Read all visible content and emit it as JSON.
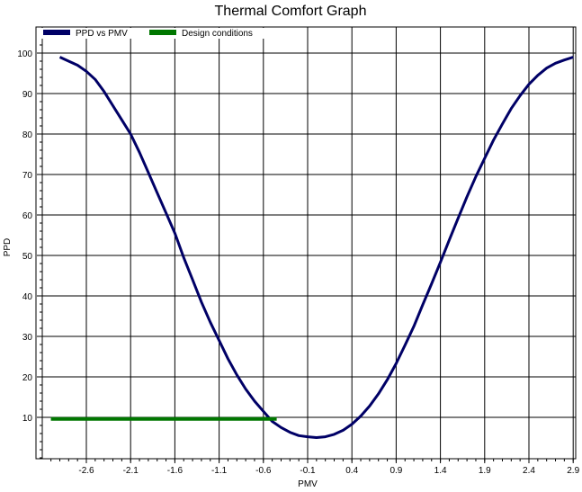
{
  "chart_data": {
    "type": "line",
    "title": "Thermal Comfort Graph",
    "xlabel": "PMV",
    "ylabel": "PPD",
    "xlim": [
      -3.0,
      3.0
    ],
    "ylim": [
      0,
      105
    ],
    "x_ticks": [
      -2.6,
      -2.1,
      -1.6,
      -1.1,
      -0.6,
      -0.1,
      0.4,
      0.9,
      1.4,
      1.9,
      2.4,
      2.9
    ],
    "x_tick_labels": [
      "-2.6",
      "-2.1",
      "-1.6",
      "-1.1",
      "-0.6",
      "-0.1",
      "0.4",
      "0.9",
      "1.4",
      "1.9",
      "2.4",
      "2.9"
    ],
    "y_ticks": [
      10,
      20,
      30,
      40,
      50,
      60,
      70,
      80,
      90,
      100
    ],
    "y_tick_labels": [
      "10",
      "20",
      "30",
      "40",
      "50",
      "60",
      "70",
      "80",
      "90",
      "100"
    ],
    "grid": true,
    "legend_position": "top-left",
    "series": [
      {
        "name": "PPD vs PMV",
        "color": "#000066",
        "x": [
          -2.9,
          -2.8,
          -2.7,
          -2.6,
          -2.5,
          -2.4,
          -2.3,
          -2.2,
          -2.1,
          -2.0,
          -1.9,
          -1.8,
          -1.7,
          -1.6,
          -1.5,
          -1.4,
          -1.3,
          -1.2,
          -1.1,
          -1.0,
          -0.9,
          -0.8,
          -0.7,
          -0.6,
          -0.5,
          -0.4,
          -0.3,
          -0.2,
          -0.1,
          0.0,
          0.1,
          0.2,
          0.3,
          0.4,
          0.5,
          0.6,
          0.7,
          0.8,
          0.9,
          1.0,
          1.1,
          1.2,
          1.3,
          1.4,
          1.5,
          1.6,
          1.7,
          1.8,
          1.9,
          2.0,
          2.1,
          2.2,
          2.3,
          2.4,
          2.5,
          2.6,
          2.7,
          2.8,
          2.9
        ],
        "y": [
          99.0,
          98.0,
          97.0,
          95.5,
          93.5,
          90.5,
          87.0,
          83.5,
          80.0,
          75.5,
          70.5,
          65.5,
          60.5,
          55.5,
          49.5,
          44.0,
          38.5,
          33.5,
          29.0,
          24.5,
          20.5,
          17.0,
          14.0,
          11.5,
          9.0,
          7.5,
          6.3,
          5.5,
          5.2,
          5.0,
          5.2,
          5.8,
          6.8,
          8.3,
          10.3,
          12.8,
          15.8,
          19.3,
          23.3,
          27.8,
          32.5,
          37.8,
          43.0,
          48.3,
          53.8,
          59.2,
          64.5,
          69.5,
          74.0,
          78.5,
          82.5,
          86.3,
          89.5,
          92.3,
          94.5,
          96.3,
          97.5,
          98.3,
          99.0
        ]
      },
      {
        "name": "Design conditions",
        "color": "#007700",
        "x": [
          -3.0,
          -0.45
        ],
        "y": [
          9.6,
          9.6
        ]
      }
    ]
  }
}
